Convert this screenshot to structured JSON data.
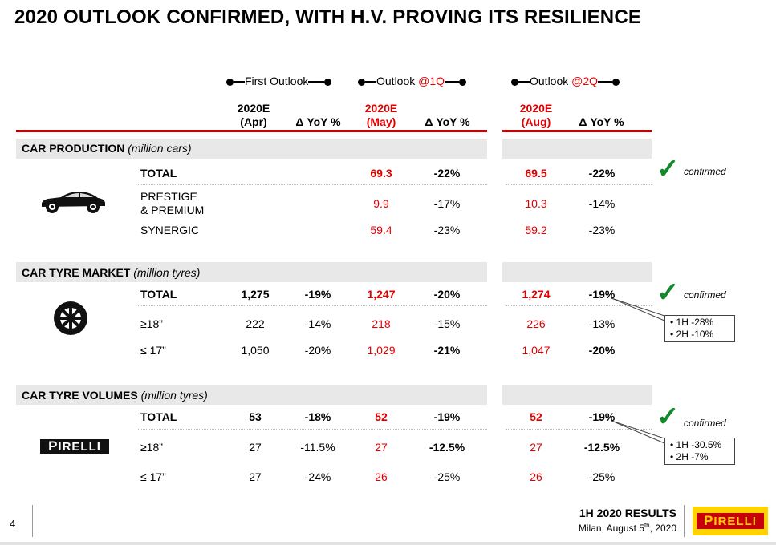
{
  "page": {
    "title": "2020 OUTLOOK CONFIRMED, WITH H.V. PROVING ITS RESILIENCE",
    "page_number": "4"
  },
  "outlooks": [
    {
      "prefix": "First Outlook",
      "suffix": ""
    },
    {
      "prefix": "Outlook ",
      "suffix": "@1Q"
    },
    {
      "prefix": "Outlook ",
      "suffix": "@2Q"
    }
  ],
  "columns": [
    {
      "line1": "2020E",
      "line2": "(Apr)"
    },
    {
      "label": "Δ YoY %"
    },
    {
      "line1": "2020E",
      "line2": "(May)"
    },
    {
      "label": "Δ YoY %"
    },
    {
      "line1": "2020E",
      "line2": "(Aug)"
    },
    {
      "label": "Δ YoY %"
    }
  ],
  "sections": [
    {
      "name": "CAR PRODUCTION",
      "unit": "(million cars)",
      "icon": "car-icon",
      "rows": [
        {
          "label": "TOTAL",
          "bold": true,
          "values": [
            "",
            "",
            "69.3",
            "-22%",
            "69.5",
            "-22%"
          ]
        },
        {
          "label": "PRESTIGE",
          "label2": "& PREMIUM",
          "values": [
            "",
            "",
            "9.9",
            "-17%",
            "10.3",
            "-14%"
          ]
        },
        {
          "label": "SYNERGIC",
          "values": [
            "",
            "",
            "59.4",
            "-23%",
            "59.2",
            "-23%"
          ]
        }
      ],
      "status": "confirmed"
    },
    {
      "name": "CAR TYRE MARKET",
      "unit": "(million tyres)",
      "icon": "tyre-icon",
      "rows": [
        {
          "label": "TOTAL",
          "bold": true,
          "values": [
            "1,275",
            "-19%",
            "1,247",
            "-20%",
            "1,274",
            "-19%"
          ]
        },
        {
          "label": "≥18”",
          "values": [
            "222",
            "-14%",
            "218",
            "-15%",
            "226",
            "-13%"
          ]
        },
        {
          "label": "≤ 17”",
          "values": [
            "1,050",
            "-20%",
            "1,029",
            "-21%",
            "1,047",
            "-20%"
          ]
        }
      ],
      "status": "confirmed",
      "callout": [
        "• 1H -28%",
        "• 2H -10%"
      ]
    },
    {
      "name": "CAR TYRE VOLUMES",
      "unit": "(million tyres)",
      "icon": "pirelli-logo-icon",
      "rows": [
        {
          "label": "TOTAL",
          "bold": true,
          "values": [
            "53",
            "-18%",
            "52",
            "-19%",
            "52",
            "-19%"
          ]
        },
        {
          "label": "≥18”",
          "values": [
            "27",
            "-11.5%",
            "27",
            "-12.5%",
            "27",
            "-12.5%"
          ]
        },
        {
          "label": "≤ 17”",
          "values": [
            "27",
            "-24%",
            "26",
            "-25%",
            "26",
            "-25%"
          ]
        }
      ],
      "status": "confirmed",
      "callout": [
        "• 1H -30.5%",
        "• 2H -7%"
      ]
    }
  ],
  "footer": {
    "results": "1H 2020 RESULTS",
    "location": "Milan, August 5",
    "date_sup": "th",
    "year": ", 2020",
    "logo_text": "IRELLI",
    "logo_p": "P"
  },
  "colors": {
    "accent_red": "#e10000",
    "check_green": "#128a2a",
    "logo_yellow": "#ffd200"
  }
}
